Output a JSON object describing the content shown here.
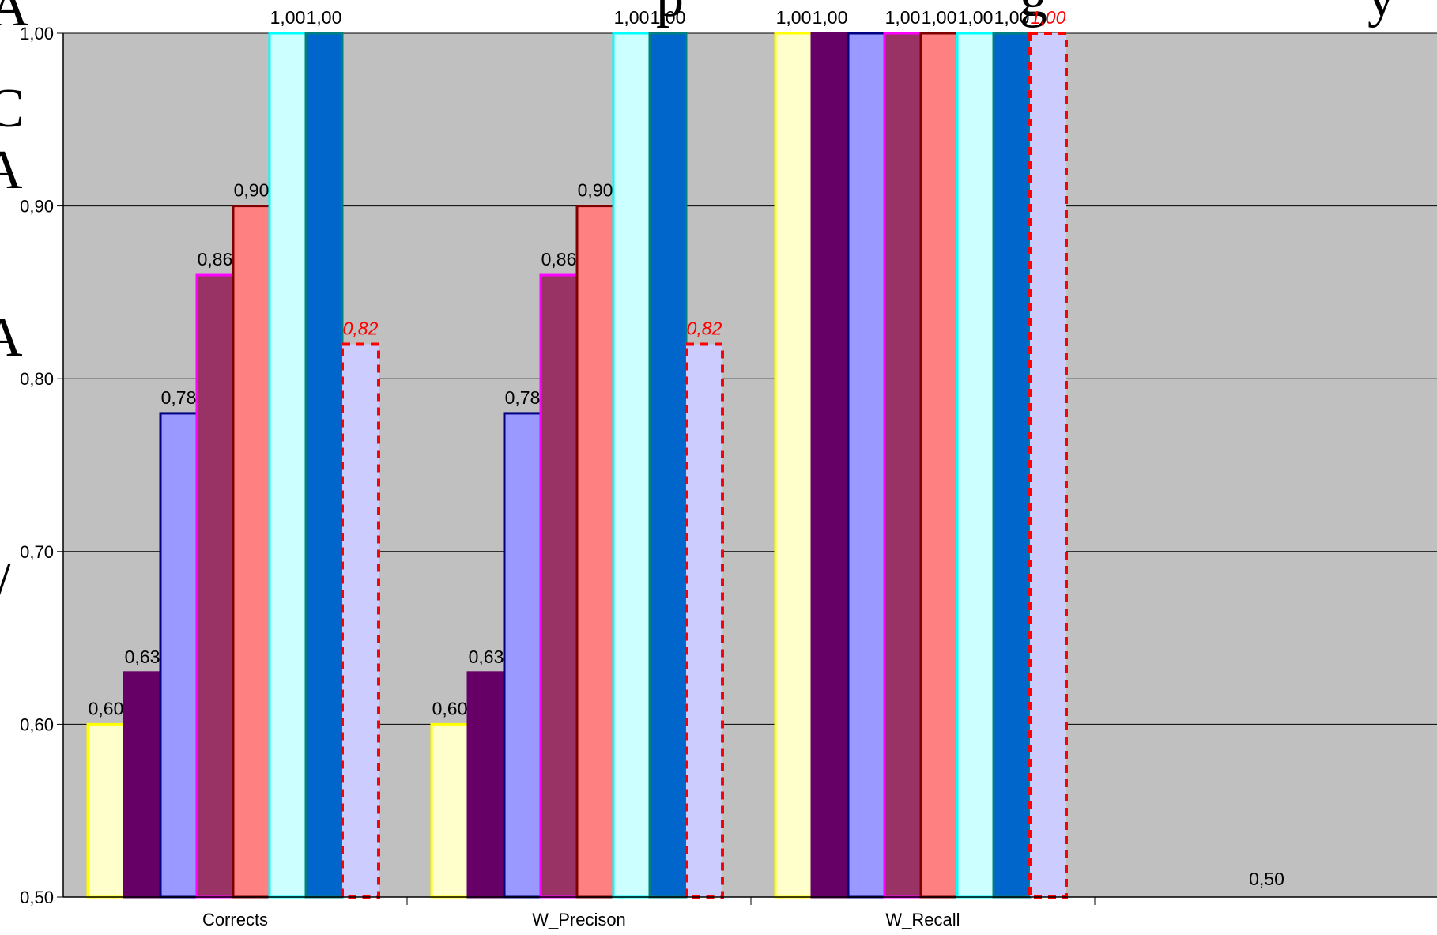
{
  "chart_data": {
    "type": "bar",
    "title": "",
    "xlabel": "",
    "ylabel": "",
    "ylim": [
      0.5,
      1.0
    ],
    "yticks": [
      "0,50",
      "0,60",
      "0,70",
      "0,80",
      "0,90",
      "1,00"
    ],
    "grid": true,
    "categories": [
      "Corrects",
      "W_Precison",
      "W_Recall",
      ""
    ],
    "series": [
      {
        "values": [
          0.6,
          0.6,
          1.0,
          null
        ],
        "labels": [
          "0,60",
          "0,60",
          "1,00",
          ""
        ],
        "fill": "#ffffcc",
        "stroke": "#ffff00"
      },
      {
        "values": [
          0.63,
          0.63,
          1.0,
          null
        ],
        "labels": [
          "0,63",
          "0,63",
          "1,00",
          ""
        ],
        "fill": "#660066",
        "stroke": "#660066"
      },
      {
        "values": [
          0.78,
          0.78,
          1.0,
          null
        ],
        "labels": [
          "0,78",
          "0,78",
          "",
          ""
        ],
        "fill": "#9999ff",
        "stroke": "#000080"
      },
      {
        "values": [
          0.86,
          0.86,
          1.0,
          null
        ],
        "labels": [
          "0,86",
          "0,86",
          "1,00",
          ""
        ],
        "fill": "#993366",
        "stroke": "#ff00ff"
      },
      {
        "values": [
          0.9,
          0.9,
          1.0,
          null
        ],
        "labels": [
          "0,90",
          "0,90",
          "1,00",
          ""
        ],
        "fill": "#ff8080",
        "stroke": "#800000"
      },
      {
        "values": [
          1.0,
          1.0,
          1.0,
          null
        ],
        "labels": [
          "1,00",
          "1,00",
          "1,00",
          ""
        ],
        "fill": "#ccffff",
        "stroke": "#00ffff"
      },
      {
        "values": [
          1.0,
          1.0,
          1.0,
          null
        ],
        "labels": [
          "1,00",
          "1,00",
          "1,00",
          ""
        ],
        "fill": "#0066cc",
        "stroke": "#008080"
      },
      {
        "values": [
          0.82,
          0.82,
          1.0,
          null
        ],
        "labels": [
          "0,82",
          "0,82",
          "1,00",
          ""
        ],
        "fill": "#ccccff",
        "stroke": "#ff0000",
        "dashed": true,
        "label_color": "#ff0000"
      }
    ],
    "extra_labels": [
      {
        "category": 3,
        "text": "0,50"
      }
    ]
  }
}
